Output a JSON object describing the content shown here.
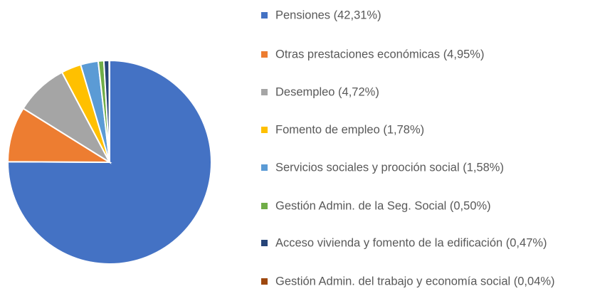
{
  "chart_data": {
    "type": "pie",
    "categories": [
      "Pensiones  (42,31%)",
      "Otras prestaciones económicas (4,95%)",
      "Desempleo (4,72%)",
      "Fomento de empleo (1,78%)",
      "Servicios sociales y prooción social (1,58%)",
      "Gestión Admin. de la Seg. Social (0,50%)",
      "Acceso vivienda y fomento de la edificación (0,47%)",
      "Gestión Admin. del trabajo y economía social (0,04%)"
    ],
    "values": [
      42.31,
      4.95,
      4.72,
      1.78,
      1.58,
      0.5,
      0.47,
      0.04
    ],
    "colors": [
      "#4472c4",
      "#ed7d31",
      "#a5a5a5",
      "#ffc000",
      "#5b9bd5",
      "#70ad47",
      "#264478",
      "#9e480e"
    ],
    "legend": "right"
  }
}
